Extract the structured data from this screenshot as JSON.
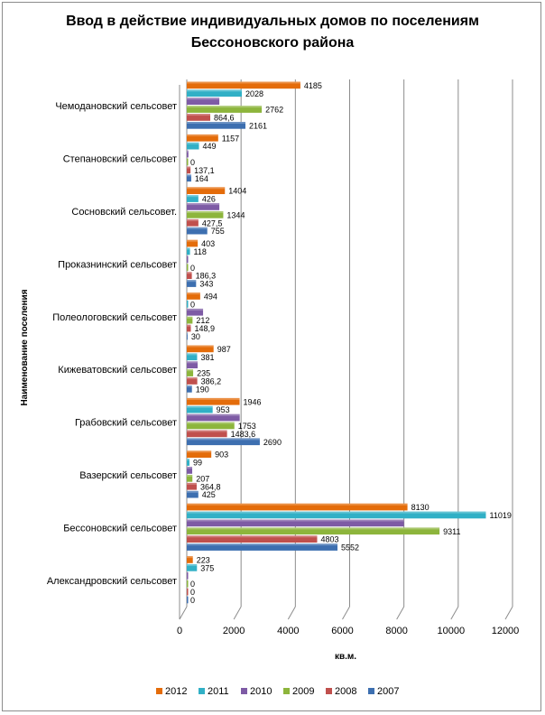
{
  "chart_data": {
    "type": "bar",
    "orientation": "horizontal",
    "title": "Ввод в действие индивидуальных домов по поселениям Бессоновского района",
    "title_lines": [
      "Ввод в действие индивидуальных домов по поселениям",
      "Бессоновского района"
    ],
    "xlabel": "кв.м.",
    "ylabel": "Наименование поселения",
    "xlim": [
      0,
      12000
    ],
    "xticks": [
      "0",
      "2000",
      "4000",
      "6000",
      "8000",
      "10000",
      "12000"
    ],
    "grid": true,
    "legend_position": "bottom",
    "categories": [
      "Чемодановский сельсовет",
      "Степановский сельсовет",
      "Сосновский сельсовет.",
      "Проказнинский сельсовет",
      "Полеологовский сельсовет",
      "Кижеватовский сельсовет",
      "Грабовский сельсовет",
      "Вазерский сельсовет",
      "Бессоновский сельсовет",
      "Александровский сельсовет"
    ],
    "series": [
      {
        "name": "2012",
        "color": "#e46c0a",
        "values": [
          4185,
          1157,
          1404,
          403,
          494,
          987,
          1946,
          903,
          8130,
          223
        ],
        "labels": [
          "4185",
          "1157",
          "1404",
          "403",
          "494",
          "987",
          "1946",
          "903",
          "8130",
          "223"
        ]
      },
      {
        "name": "2011",
        "color": "#31b0c6",
        "values": [
          2028,
          449,
          426,
          118,
          0,
          381,
          953,
          99,
          11019,
          375
        ],
        "labels": [
          "2028",
          "449",
          "426",
          "118",
          "0",
          "381",
          "953",
          "99",
          "11019",
          "375"
        ]
      },
      {
        "name": "2010",
        "color": "#7e5ba5",
        "values": [
          1200,
          60,
          1200,
          0,
          600,
          400,
          1950,
          200,
          8000,
          0
        ],
        "labels": [
          "",
          "",
          "",
          "",
          "",
          "",
          "",
          "",
          "",
          ""
        ]
      },
      {
        "name": "2009",
        "color": "#8db53c",
        "values": [
          2762,
          0,
          1344,
          0,
          212,
          235,
          1753,
          207,
          9311,
          0
        ],
        "labels": [
          "2762",
          "0",
          "1344",
          "0",
          "212",
          "235",
          "1753",
          "207",
          "9311",
          "0"
        ]
      },
      {
        "name": "2008",
        "color": "#c0504d",
        "values": [
          864.6,
          137.1,
          427.5,
          186.3,
          148.9,
          386.2,
          1483.6,
          364.8,
          4803,
          0
        ],
        "labels": [
          "864,6",
          "137,1",
          "427,5",
          "186,3",
          "148,9",
          "386,2",
          "1483,6",
          "364,8",
          "4803",
          "0"
        ]
      },
      {
        "name": "2007",
        "color": "#3d6fb0",
        "values": [
          2161,
          164,
          755,
          343,
          30,
          190,
          2690,
          425,
          5552,
          0
        ],
        "labels": [
          "2161",
          "164",
          "755",
          "343",
          "30",
          "190",
          "2690",
          "425",
          "5552",
          "0"
        ]
      }
    ]
  }
}
